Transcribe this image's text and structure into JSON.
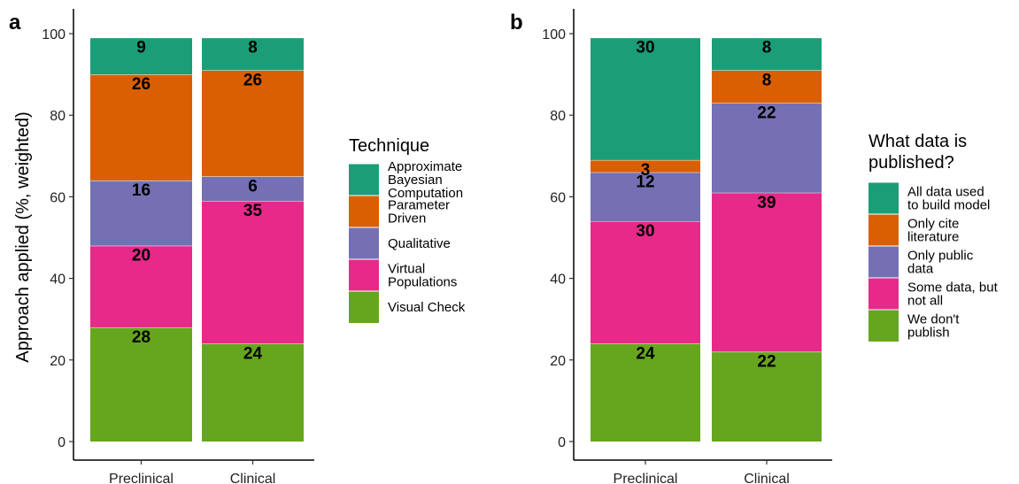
{
  "colors": {
    "teal": "#1b9e77",
    "orange": "#d95f02",
    "purple": "#7570b3",
    "pink": "#e7298a",
    "green": "#66a61e"
  },
  "chart_data": [
    {
      "type": "bar",
      "stacked": true,
      "panel": "a",
      "ylabel": "Approach applied (%, weighted)",
      "ylim": [
        0,
        100
      ],
      "yticks": [
        "0",
        "20",
        "40",
        "60",
        "80",
        "100"
      ],
      "categories": [
        "Preclinical",
        "Clinical"
      ],
      "legend_title": "Technique",
      "legend_position": "right",
      "series": [
        {
          "name": "Visual Check",
          "lines": [
            "Visual Check"
          ],
          "color": "#66a61e",
          "values": [
            28,
            24
          ],
          "labels": [
            "28",
            "24"
          ]
        },
        {
          "name": "Virtual Populations",
          "lines": [
            "Virtual",
            "Populations"
          ],
          "color": "#e7298a",
          "values": [
            20,
            35
          ],
          "labels": [
            "20",
            "35"
          ]
        },
        {
          "name": "Qualitative",
          "lines": [
            "Qualitative"
          ],
          "color": "#7570b3",
          "values": [
            16,
            6
          ],
          "labels": [
            "16",
            "6"
          ]
        },
        {
          "name": "Parameter Driven",
          "lines": [
            "Parameter",
            "Driven"
          ],
          "color": "#d95f02",
          "values": [
            26,
            26
          ],
          "labels": [
            "26",
            "26"
          ]
        },
        {
          "name": "Approximate Bayesian Computation",
          "lines": [
            "Approximate",
            "Bayesian",
            "Computation"
          ],
          "color": "#1b9e77",
          "values": [
            9,
            8
          ],
          "labels": [
            "9",
            "8"
          ]
        }
      ]
    },
    {
      "type": "bar",
      "stacked": true,
      "panel": "b",
      "ylabel": "",
      "ylim": [
        0,
        100
      ],
      "yticks": [
        "0",
        "20",
        "40",
        "60",
        "80",
        "100"
      ],
      "categories": [
        "Preclinical",
        "Clinical"
      ],
      "legend_title": "What data is published?",
      "legend_title_lines": [
        "What data is",
        "published?"
      ],
      "legend_position": "right",
      "series": [
        {
          "name": "We don't publish",
          "lines": [
            "We don't",
            "publish"
          ],
          "color": "#66a61e",
          "values": [
            24,
            22
          ],
          "labels": [
            "24",
            "22"
          ]
        },
        {
          "name": "Some data, but not all",
          "lines": [
            "Some data, but",
            "not all"
          ],
          "color": "#e7298a",
          "values": [
            30,
            39
          ],
          "labels": [
            "30",
            "39"
          ]
        },
        {
          "name": "Only public data",
          "lines": [
            "Only public",
            "data"
          ],
          "color": "#7570b3",
          "values": [
            12,
            22
          ],
          "labels": [
            "12",
            "22"
          ]
        },
        {
          "name": "Only cite literature",
          "lines": [
            "Only cite",
            "literature"
          ],
          "color": "#d95f02",
          "values": [
            3,
            8
          ],
          "labels": [
            "3",
            "8"
          ]
        },
        {
          "name": "All data used to build model",
          "lines": [
            "All data used",
            "to build model"
          ],
          "color": "#1b9e77",
          "values": [
            30,
            8
          ],
          "labels": [
            "30",
            "8"
          ]
        }
      ]
    }
  ]
}
